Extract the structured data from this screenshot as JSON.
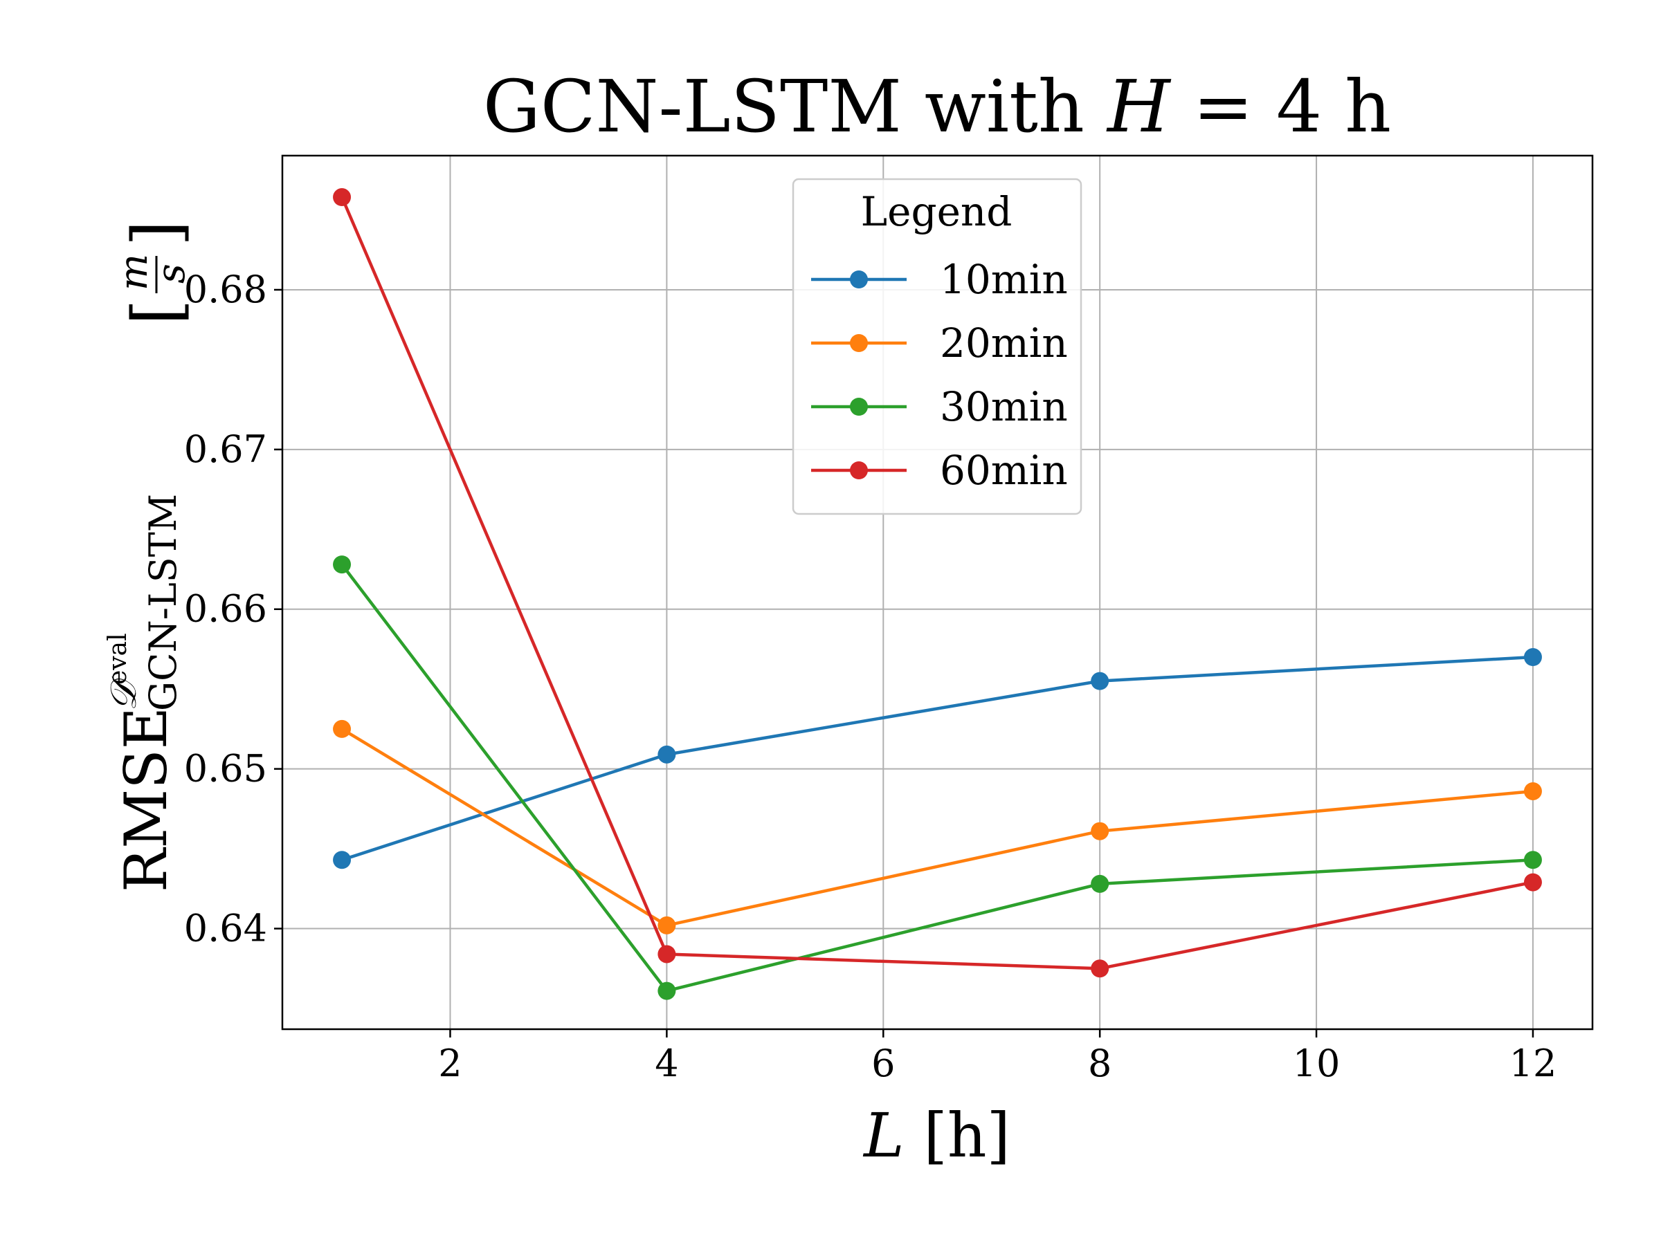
{
  "chart_data": {
    "type": "line",
    "title_prefix": "GCN-LSTM with ",
    "title_var": "H",
    "title_suffix": " = 4 h",
    "xlabel_var": "L",
    "xlabel_unit": " [h]",
    "ylabel_main": "RMSE",
    "ylabel_sup": "𝒟",
    "ylabel_sup_sub": "eval",
    "ylabel_sub": "GCN-LSTM",
    "ylabel_unit_num": "m",
    "ylabel_unit_den": "s",
    "xlim": [
      0.45,
      12.55
    ],
    "ylim": [
      0.6337,
      0.6884
    ],
    "xticks": [
      2,
      4,
      6,
      8,
      10,
      12
    ],
    "xtick_labels": [
      "2",
      "4",
      "6",
      "8",
      "10",
      "12"
    ],
    "yticks": [
      0.64,
      0.65,
      0.66,
      0.67,
      0.68
    ],
    "ytick_labels": [
      "0.64",
      "0.65",
      "0.66",
      "0.67",
      "0.68"
    ],
    "grid": true,
    "legend_title": "Legend",
    "legend_position": "upper-center",
    "x": [
      1,
      4,
      8,
      12
    ],
    "series": [
      {
        "name": "10min",
        "color": "#1f77b4",
        "values": [
          0.6443,
          0.6509,
          0.6555,
          0.657
        ]
      },
      {
        "name": "20min",
        "color": "#ff7f0e",
        "values": [
          0.6525,
          0.6402,
          0.6461,
          0.6486
        ]
      },
      {
        "name": "30min",
        "color": "#2ca02c",
        "values": [
          0.6628,
          0.6361,
          0.6428,
          0.6443
        ]
      },
      {
        "name": "60min",
        "color": "#d62728",
        "values": [
          0.6858,
          0.6384,
          0.6375,
          0.6429
        ]
      }
    ]
  }
}
